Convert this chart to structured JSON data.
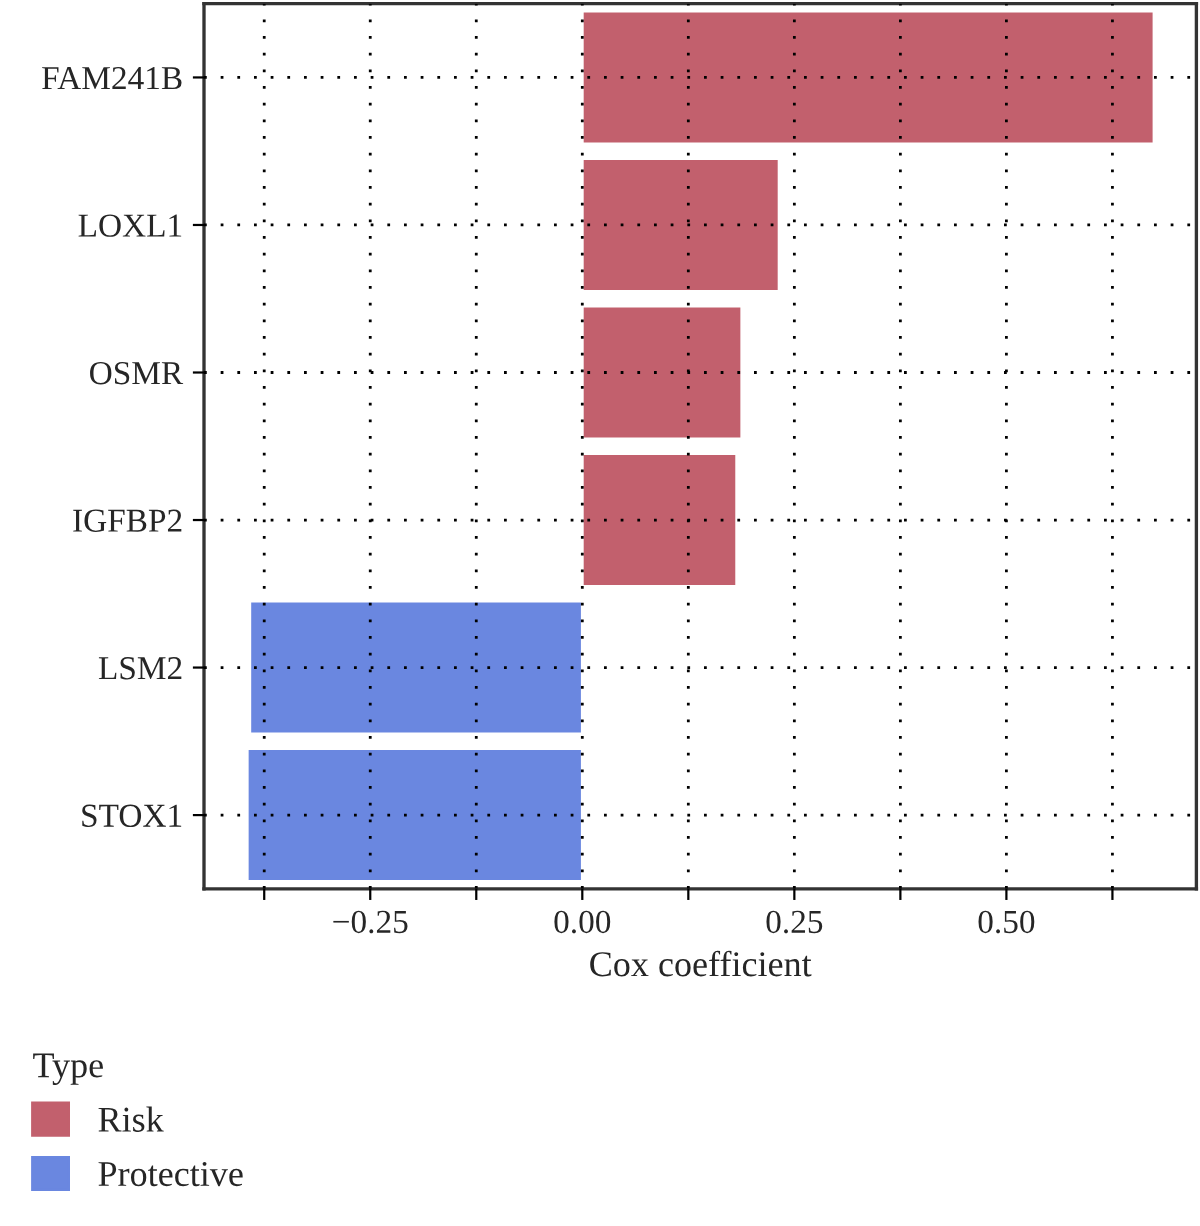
{
  "chart_data": {
    "type": "bar",
    "orientation": "horizontal",
    "categories": [
      "FAM241B",
      "LOXL1",
      "OSMR",
      "IGFBP2",
      "LSM2",
      "STOX1"
    ],
    "series": [
      {
        "name": "Risk",
        "color": "#c2606d",
        "values": [
          0.674,
          0.232,
          0.188,
          0.182,
          null,
          null
        ]
      },
      {
        "name": "Protective",
        "color": "#6a87e0",
        "values": [
          null,
          null,
          null,
          null,
          -0.392,
          -0.395
        ]
      }
    ],
    "xlabel": "Cox coefficient",
    "legend_title": "Type",
    "legend": "bottom left",
    "xlim": [
      -0.446,
      0.724
    ],
    "xticks": [
      {
        "value": -0.375,
        "label": null
      },
      {
        "value": -0.25,
        "label": "−0.25"
      },
      {
        "value": -0.125,
        "label": null
      },
      {
        "value": 0.0,
        "label": "0.00"
      },
      {
        "value": 0.125,
        "label": null
      },
      0.25,
      {
        "value": 0.375,
        "label": null
      },
      {
        "value": 0.5,
        "label": "0.50"
      },
      {
        "value": 0.625,
        "label": null
      }
    ],
    "grid": true
  }
}
